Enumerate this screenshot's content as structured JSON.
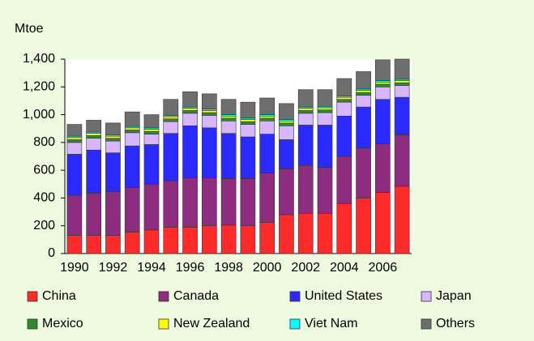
{
  "chart_data": {
    "type": "stacked_bar",
    "y_label": "Mtoe",
    "categories": [
      "1990",
      null,
      "1992",
      null,
      "1994",
      null,
      "1996",
      null,
      "1998",
      null,
      "2000",
      null,
      "2002",
      null,
      "2004",
      null,
      "2006",
      null
    ],
    "ylim": [
      0,
      1400
    ],
    "yticks": [
      0,
      200,
      400,
      600,
      800,
      {
        "value": 1000,
        "label": "1,000"
      },
      {
        "value": 1200,
        "label": "1,200"
      },
      {
        "value": 1400,
        "label": "1,400"
      }
    ],
    "series": [
      {
        "name": "China",
        "color": "#ff2b2b",
        "values": [
          130,
          130,
          130,
          155,
          170,
          190,
          190,
          200,
          205,
          200,
          225,
          280,
          290,
          290,
          360,
          400,
          440,
          485
        ]
      },
      {
        "name": "Canada",
        "color": "#8e2c7f",
        "values": [
          290,
          305,
          315,
          320,
          330,
          335,
          355,
          345,
          335,
          340,
          355,
          330,
          345,
          330,
          340,
          360,
          350,
          370
        ]
      },
      {
        "name": "United States",
        "color": "#2a2aff",
        "values": [
          295,
          310,
          280,
          300,
          285,
          340,
          375,
          360,
          325,
          300,
          280,
          210,
          290,
          305,
          290,
          295,
          320,
          270
        ]
      },
      {
        "name": "Japan",
        "color": "#d8b6ff",
        "values": [
          85,
          85,
          85,
          95,
          75,
          85,
          90,
          90,
          90,
          90,
          95,
          100,
          85,
          90,
          100,
          85,
          90,
          85
        ]
      },
      {
        "name": "Mexico",
        "color": "#2e8b2e",
        "values": [
          20,
          20,
          20,
          20,
          20,
          20,
          20,
          20,
          20,
          20,
          20,
          20,
          20,
          20,
          20,
          20,
          20,
          20
        ]
      },
      {
        "name": "New Zealand",
        "color": "#ffff00",
        "values": [
          15,
          15,
          15,
          15,
          15,
          15,
          15,
          15,
          15,
          15,
          15,
          15,
          15,
          15,
          15,
          15,
          15,
          15
        ]
      },
      {
        "name": "Viet Nam",
        "color": "#00ffff",
        "values": [
          10,
          10,
          10,
          10,
          10,
          10,
          10,
          10,
          10,
          10,
          10,
          10,
          10,
          10,
          10,
          10,
          10,
          10
        ]
      },
      {
        "name": "Others",
        "color": "#6e6e6e",
        "values": [
          85,
          85,
          85,
          105,
          95,
          115,
          110,
          110,
          110,
          115,
          120,
          115,
          125,
          120,
          125,
          125,
          150,
          145
        ]
      }
    ]
  }
}
